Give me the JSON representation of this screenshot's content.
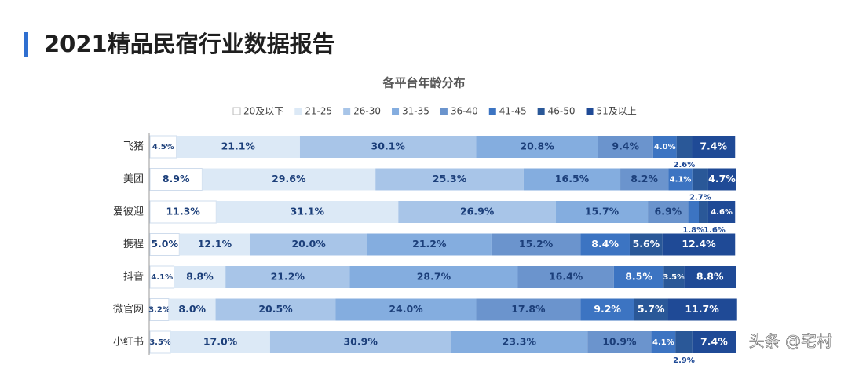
{
  "header": {
    "title": "2021精品民宿行业数据报告"
  },
  "watermark": "头条 @宅村",
  "chart_data": {
    "type": "stacked-bar-horizontal",
    "title": "各平台年龄分布",
    "categories": [
      "飞猪",
      "美团",
      "爱彼迎",
      "携程",
      "抖音",
      "微官网",
      "小红书"
    ],
    "xlim": [
      0,
      100
    ],
    "legend": "top",
    "series": [
      {
        "name": "20及以下",
        "color": "#ffffff",
        "values": [
          4.5,
          8.9,
          11.3,
          5.0,
          4.1,
          3.2,
          3.5
        ],
        "value_labels": [
          "4.5%",
          "8.9%",
          "11.3%",
          "5.0%",
          "4.1%",
          "3.2%",
          "3.5%"
        ]
      },
      {
        "name": "21-25",
        "color": "#dce9f6",
        "values": [
          21.1,
          29.6,
          31.1,
          12.1,
          8.8,
          8.0,
          17.0
        ],
        "value_labels": [
          "21.1%",
          "29.6%",
          "31.1%",
          "12.1%",
          "8.8%",
          "8.0%",
          "17.0%"
        ]
      },
      {
        "name": "26-30",
        "color": "#a8c5e8",
        "values": [
          30.1,
          25.3,
          26.9,
          20.0,
          21.2,
          20.5,
          30.9
        ],
        "value_labels": [
          "30.1%",
          "25.3%",
          "26.9%",
          "20.0%",
          "21.2%",
          "20.5%",
          "30.9%"
        ]
      },
      {
        "name": "31-35",
        "color": "#84addf",
        "values": [
          20.8,
          16.5,
          15.7,
          21.2,
          28.7,
          24.0,
          23.3
        ],
        "value_labels": [
          "20.8%",
          "16.5%",
          "15.7%",
          "21.2%",
          "28.7%",
          "24.0%",
          "23.3%"
        ]
      },
      {
        "name": "36-40",
        "color": "#6b94cd",
        "values": [
          9.4,
          8.2,
          6.9,
          15.2,
          16.4,
          17.8,
          10.9
        ],
        "value_labels": [
          "9.4%",
          "8.2%",
          "6.9%",
          "15.2%",
          "16.4%",
          "17.8%",
          "10.9%"
        ]
      },
      {
        "name": "41-45",
        "color": "#3c74c2",
        "values": [
          4.0,
          4.1,
          1.8,
          8.4,
          8.5,
          9.2,
          4.1
        ],
        "value_labels": [
          "4.0%",
          "4.1%",
          "1.8%",
          "8.4%",
          "8.5%",
          "9.2%",
          "4.1%"
        ]
      },
      {
        "name": "46-50",
        "color": "#2a5898",
        "values": [
          2.6,
          2.7,
          1.6,
          5.6,
          3.5,
          5.7,
          2.9
        ],
        "value_labels": [
          "2.6%",
          "2.7%",
          "1.6%",
          "5.6%",
          "3.5%",
          "5.7%",
          "2.9%"
        ]
      },
      {
        "name": "51及以上",
        "color": "#1f4a96",
        "values": [
          7.4,
          4.7,
          4.6,
          12.4,
          8.8,
          11.7,
          7.4
        ],
        "value_labels": [
          "7.4%",
          "4.7%",
          "4.6%",
          "12.4%",
          "8.8%",
          "11.7%",
          "7.4%"
        ]
      }
    ]
  }
}
